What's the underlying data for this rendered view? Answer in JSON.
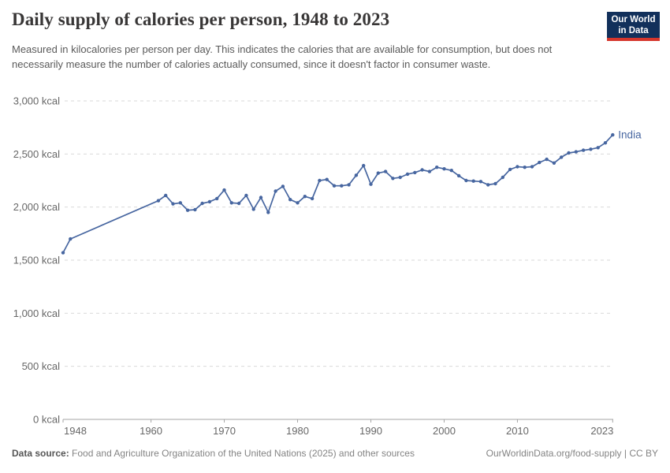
{
  "header": {
    "title": "Daily supply of calories per person, 1948 to 2023",
    "subtitle": "Measured in kilocalories per person per day. This indicates the calories that are available for consumption, but does not necessarily measure the number of calories actually consumed, since it doesn't factor in consumer waste.",
    "logo": {
      "line1": "Our World",
      "line2": "in Data",
      "bg_color": "#12305B",
      "accent_color": "#D6362C"
    }
  },
  "chart_data": {
    "type": "line",
    "title": "Daily supply of calories per person, 1948 to 2023",
    "xlabel": "",
    "ylabel": "",
    "xlim": [
      1948,
      2023
    ],
    "ylim": [
      0,
      3000
    ],
    "grid": "horizontal-dashed",
    "legend_position": "end-of-line-label",
    "grid_color": "#d9d9d9",
    "axis_color": "#a5a5a5",
    "tick_label_color": "#676767",
    "x_ticks": [
      {
        "value": 1948,
        "label": "1948"
      },
      {
        "value": 1960,
        "label": "1960"
      },
      {
        "value": 1970,
        "label": "1970"
      },
      {
        "value": 1980,
        "label": "1980"
      },
      {
        "value": 1990,
        "label": "1990"
      },
      {
        "value": 2000,
        "label": "2000"
      },
      {
        "value": 2010,
        "label": "2010"
      },
      {
        "value": 2023,
        "label": "2023"
      }
    ],
    "y_ticks": [
      {
        "value": 0,
        "label": "0 kcal"
      },
      {
        "value": 500,
        "label": "500 kcal"
      },
      {
        "value": 1000,
        "label": "1,000 kcal"
      },
      {
        "value": 1500,
        "label": "1,500 kcal"
      },
      {
        "value": 2000,
        "label": "2,000 kcal"
      },
      {
        "value": 2500,
        "label": "2,500 kcal"
      },
      {
        "value": 3000,
        "label": "3,000 kcal"
      }
    ],
    "series": [
      {
        "name": "India",
        "color": "#4766A0",
        "unit": "kcal",
        "points": [
          [
            1948,
            1570
          ],
          [
            1949,
            1700
          ],
          [
            1961,
            2060
          ],
          [
            1962,
            2110
          ],
          [
            1963,
            2030
          ],
          [
            1964,
            2040
          ],
          [
            1965,
            1970
          ],
          [
            1966,
            1975
          ],
          [
            1967,
            2035
          ],
          [
            1968,
            2050
          ],
          [
            1969,
            2080
          ],
          [
            1970,
            2160
          ],
          [
            1971,
            2040
          ],
          [
            1972,
            2035
          ],
          [
            1973,
            2110
          ],
          [
            1974,
            1980
          ],
          [
            1975,
            2090
          ],
          [
            1976,
            1950
          ],
          [
            1977,
            2150
          ],
          [
            1978,
            2195
          ],
          [
            1979,
            2070
          ],
          [
            1980,
            2040
          ],
          [
            1981,
            2100
          ],
          [
            1982,
            2080
          ],
          [
            1983,
            2250
          ],
          [
            1984,
            2260
          ],
          [
            1985,
            2200
          ],
          [
            1986,
            2200
          ],
          [
            1987,
            2210
          ],
          [
            1988,
            2300
          ],
          [
            1989,
            2390
          ],
          [
            1990,
            2215
          ],
          [
            1991,
            2320
          ],
          [
            1992,
            2335
          ],
          [
            1993,
            2270
          ],
          [
            1994,
            2280
          ],
          [
            1995,
            2310
          ],
          [
            1996,
            2325
          ],
          [
            1997,
            2350
          ],
          [
            1998,
            2335
          ],
          [
            1999,
            2375
          ],
          [
            2000,
            2360
          ],
          [
            2001,
            2345
          ],
          [
            2002,
            2295
          ],
          [
            2003,
            2250
          ],
          [
            2004,
            2245
          ],
          [
            2005,
            2240
          ],
          [
            2006,
            2210
          ],
          [
            2007,
            2220
          ],
          [
            2008,
            2280
          ],
          [
            2009,
            2355
          ],
          [
            2010,
            2380
          ],
          [
            2011,
            2375
          ],
          [
            2012,
            2380
          ],
          [
            2013,
            2420
          ],
          [
            2014,
            2450
          ],
          [
            2015,
            2415
          ],
          [
            2016,
            2470
          ],
          [
            2017,
            2510
          ],
          [
            2018,
            2520
          ],
          [
            2019,
            2535
          ],
          [
            2020,
            2545
          ],
          [
            2021,
            2560
          ],
          [
            2022,
            2605
          ],
          [
            2023,
            2680
          ]
        ]
      }
    ]
  },
  "footer": {
    "source_label": "Data source:",
    "source_text": " Food and Agriculture Organization of the United Nations (2025) and other sources",
    "link_text": "OurWorldinData.org/food-supply | CC BY"
  }
}
